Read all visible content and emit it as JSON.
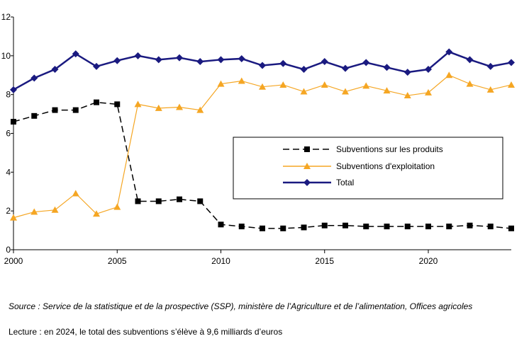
{
  "chart_data": {
    "type": "line",
    "title": "",
    "xlabel": "",
    "ylabel": "",
    "xlim": [
      2000,
      2024
    ],
    "ylim": [
      0,
      12
    ],
    "x_ticks": [
      2000,
      2005,
      2010,
      2015,
      2020
    ],
    "y_ticks": [
      0,
      2,
      4,
      6,
      8,
      10,
      12
    ],
    "grid": false,
    "legend_position": "middle-right",
    "x": [
      2000,
      2001,
      2002,
      2003,
      2004,
      2005,
      2006,
      2007,
      2008,
      2009,
      2010,
      2011,
      2012,
      2013,
      2014,
      2015,
      2016,
      2017,
      2018,
      2019,
      2020,
      2021,
      2022,
      2023,
      2024
    ],
    "series": [
      {
        "name": "Subventions sur les produits",
        "color": "#000000",
        "marker": "square",
        "line_style": "dashed",
        "values": [
          6.6,
          6.9,
          7.2,
          7.2,
          7.6,
          7.5,
          2.5,
          2.5,
          2.6,
          2.5,
          1.3,
          1.2,
          1.1,
          1.1,
          1.15,
          1.25,
          1.25,
          1.2,
          1.2,
          1.2,
          1.2,
          1.2,
          1.25,
          1.2,
          1.1
        ]
      },
      {
        "name": "Subventions d'exploitation",
        "color": "#f5a623",
        "marker": "triangle",
        "line_style": "solid",
        "values": [
          1.65,
          1.95,
          2.05,
          2.9,
          1.85,
          2.2,
          7.5,
          7.3,
          7.35,
          7.2,
          8.55,
          8.7,
          8.4,
          8.5,
          8.15,
          8.5,
          8.15,
          8.45,
          8.2,
          7.95,
          8.1,
          9.0,
          8.55,
          8.25,
          8.5
        ]
      },
      {
        "name": "Total",
        "color": "#1a1a80",
        "marker": "diamond",
        "line_style": "solid",
        "values": [
          8.25,
          8.85,
          9.3,
          10.1,
          9.45,
          9.75,
          10.0,
          9.8,
          9.9,
          9.7,
          9.8,
          9.85,
          9.5,
          9.6,
          9.3,
          9.7,
          9.35,
          9.65,
          9.4,
          9.15,
          9.3,
          10.2,
          9.8,
          9.45,
          9.65
        ]
      }
    ]
  },
  "notes": {
    "source": "Source : Service de la statistique et de la prospective (SSP), ministère de l’Agriculture et de l’alimentation, Offices agricoles",
    "reading": "Lecture : en 2024, le total des subventions s’élève à 9,6  milliards d’euros"
  }
}
